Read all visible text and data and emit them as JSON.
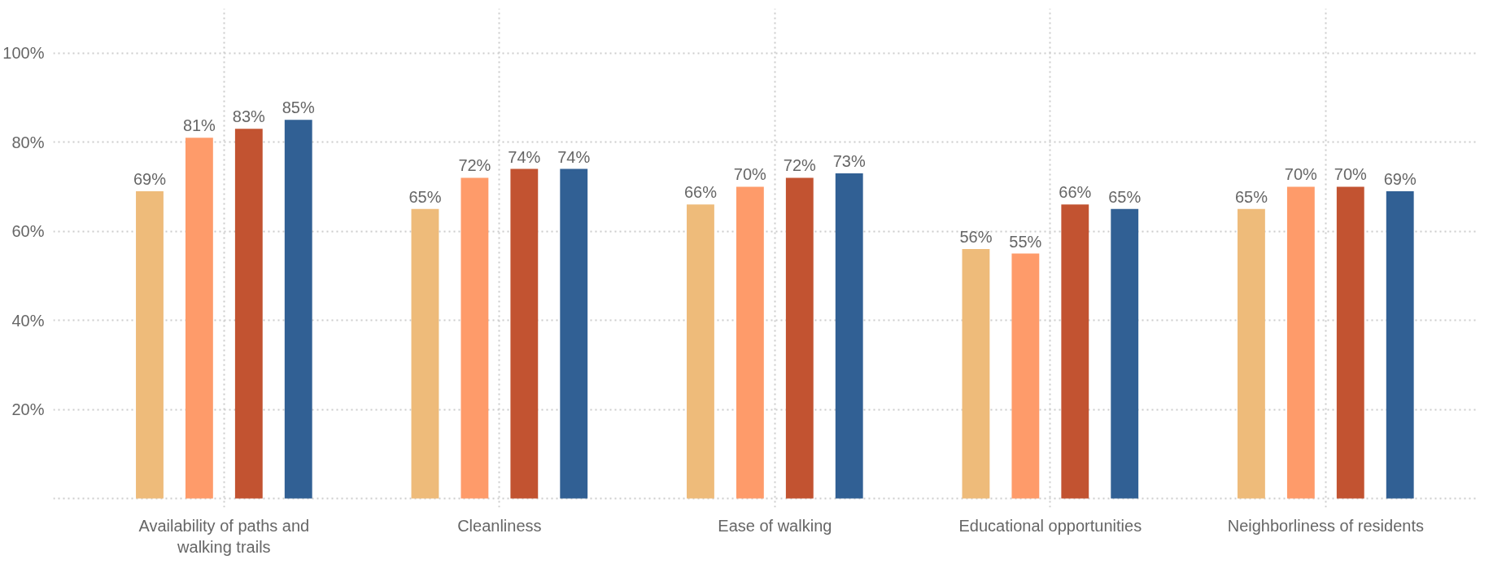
{
  "chart_data": {
    "type": "bar",
    "categories": [
      "Availability of paths and walking trails",
      "Cleanliness",
      "Ease of walking",
      "Educational opportunities",
      "Neighborliness of residents"
    ],
    "series": [
      {
        "color": "#eebb7a",
        "values": [
          69,
          65,
          66,
          56,
          65
        ],
        "value_labels": [
          "69%",
          "65%",
          "66%",
          "56%",
          "65%"
        ]
      },
      {
        "color": "#fe9b6a",
        "values": [
          81,
          72,
          70,
          55,
          70
        ],
        "value_labels": [
          "81%",
          "72%",
          "70%",
          "55%",
          "70%"
        ]
      },
      {
        "color": "#c25331",
        "values": [
          83,
          74,
          72,
          66,
          70
        ],
        "value_labels": [
          "83%",
          "74%",
          "72%",
          "66%",
          "70%"
        ]
      },
      {
        "color": "#316094",
        "values": [
          85,
          74,
          73,
          65,
          69
        ],
        "value_labels": [
          "85%",
          "74%",
          "73%",
          "65%",
          "69%"
        ]
      }
    ],
    "ylim": [
      -2,
      110
    ],
    "yticks": [
      {
        "value": 0,
        "label": null
      },
      {
        "value": 20,
        "label": "20%"
      },
      {
        "value": 40,
        "label": "40%"
      },
      {
        "value": 60,
        "label": "60%"
      },
      {
        "value": 80,
        "label": "80%"
      },
      {
        "value": 100,
        "label": "100%"
      }
    ],
    "grid": true
  }
}
